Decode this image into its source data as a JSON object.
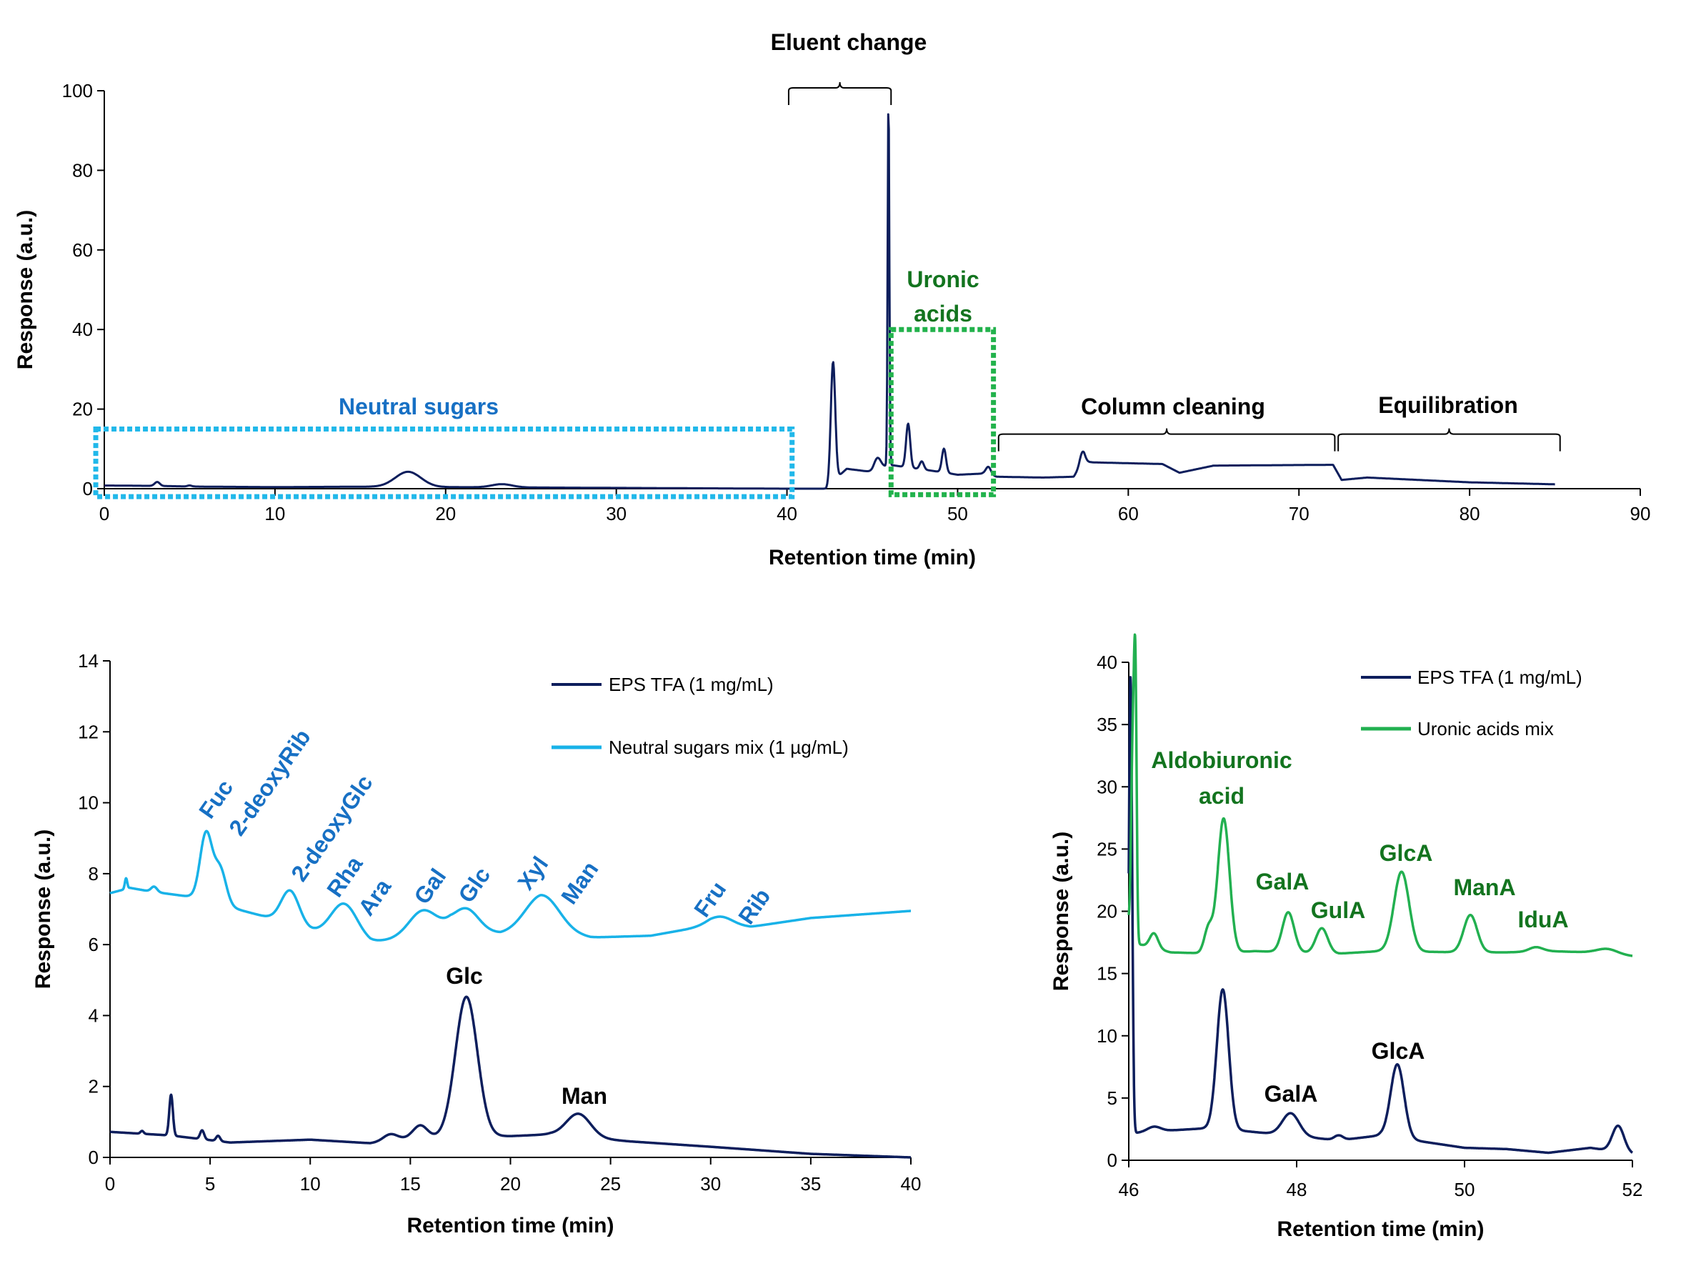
{
  "colors": {
    "eps": "#0d1e5c",
    "neutral": "#18b2e8",
    "uronic": "#22b050",
    "neutral_text": "#1770c4",
    "uronic_text": "#13741f",
    "neutral_box": "#21b8ea",
    "uronic_box": "#22b24c"
  },
  "chart_data": [
    {
      "id": "top",
      "type": "line",
      "xlabel": "Retention time (min)",
      "ylabel": "Response (a.u.)",
      "xlim": [
        0,
        90
      ],
      "ylim": [
        0,
        100
      ],
      "xticks": [
        0,
        10,
        20,
        30,
        40,
        50,
        60,
        70,
        80,
        90
      ],
      "yticks": [
        0,
        20,
        40,
        60,
        80,
        100
      ],
      "series": [
        {
          "name": "EPS TFA",
          "color": "#0d1e5c",
          "base": [
            [
              0,
              0.8
            ],
            [
              3,
              0.7
            ],
            [
              6,
              0.5
            ],
            [
              10,
              0.4
            ],
            [
              15,
              0.5
            ],
            [
              20,
              0.4
            ],
            [
              30,
              0.2
            ],
            [
              40,
              0
            ],
            [
              42.3,
              0
            ],
            [
              42.6,
              1.5
            ],
            [
              43.5,
              5
            ],
            [
              45,
              4.2
            ],
            [
              46,
              6
            ],
            [
              47,
              5.4
            ],
            [
              49,
              4.2
            ],
            [
              50,
              3.5
            ],
            [
              51.5,
              3.8
            ],
            [
              52.3,
              3
            ],
            [
              55,
              2.8
            ],
            [
              56.8,
              3
            ],
            [
              57.4,
              6.8
            ],
            [
              58,
              6.6
            ],
            [
              62,
              6.2
            ],
            [
              63,
              4
            ],
            [
              65,
              5.8
            ],
            [
              72,
              6
            ],
            [
              72.5,
              2.2
            ],
            [
              74,
              2.8
            ],
            [
              80,
              1.6
            ],
            [
              85,
              1.1
            ]
          ],
          "peaks": [
            [
              3.1,
              0.15,
              1.0
            ],
            [
              5,
              0.12,
              0.25
            ],
            [
              17.8,
              0.75,
              3.8
            ],
            [
              23.3,
              0.6,
              0.8
            ],
            [
              42.7,
              0.13,
              30
            ],
            [
              45.3,
              0.2,
              3
            ],
            [
              45.95,
              0.05,
              92
            ],
            [
              47.1,
              0.12,
              11
            ],
            [
              47.9,
              0.12,
              2
            ],
            [
              49.2,
              0.12,
              6
            ],
            [
              51.8,
              0.15,
              2
            ],
            [
              57.3,
              0.15,
              3
            ]
          ]
        }
      ],
      "annotations": [
        {
          "text": "Eluent change",
          "color": "#000000"
        },
        {
          "text": "Uronic",
          "color": "#13741f"
        },
        {
          "text": "acids",
          "color": "#13741f"
        },
        {
          "text": "Neutral sugars",
          "color": "#1770c4"
        },
        {
          "text": "Column cleaning",
          "color": "#000000"
        },
        {
          "text": "Equilibration",
          "color": "#000000"
        }
      ],
      "brackets": [
        {
          "x0": 40.1,
          "x1": 46.1,
          "y": 100
        },
        {
          "x0": 52.4,
          "x1": 72.1,
          "y": 13
        },
        {
          "x0": 72.3,
          "x1": 85.3,
          "y": 13
        }
      ],
      "boxes": [
        {
          "x0": -0.5,
          "x1": 40.3,
          "y0": -2,
          "y1": 15,
          "color": "#21b8ea"
        },
        {
          "x0": 46.1,
          "x1": 52.1,
          "y0": -1.5,
          "y1": 40,
          "color": "#22b24c"
        }
      ]
    },
    {
      "id": "bl",
      "type": "line",
      "xlabel": "Retention time (min)",
      "ylabel": "Response (a.u.)",
      "xlim": [
        0,
        40
      ],
      "ylim": [
        0,
        14
      ],
      "xticks": [
        0,
        5,
        10,
        15,
        20,
        25,
        30,
        35,
        40
      ],
      "yticks": [
        0,
        2,
        4,
        6,
        8,
        10,
        12,
        14
      ],
      "legend": [
        {
          "label": "EPS TFA (1 mg/mL)",
          "color": "#0d1e5c"
        },
        {
          "label": "Neutral sugars mix (1 µg/mL)",
          "color": "#18b2e8"
        }
      ],
      "series": [
        {
          "name": "EPS TFA (1 mg/mL)",
          "color": "#0d1e5c",
          "base": [
            [
              0,
              0.72
            ],
            [
              3,
              0.62
            ],
            [
              6,
              0.42
            ],
            [
              10,
              0.5
            ],
            [
              13,
              0.4
            ],
            [
              15,
              0.55
            ],
            [
              20,
              0.6
            ],
            [
              22,
              0.65
            ],
            [
              26,
              0.45
            ],
            [
              30,
              0.3
            ],
            [
              35,
              0.1
            ],
            [
              40,
              0
            ]
          ],
          "peaks": [
            [
              1.6,
              0.08,
              0.08
            ],
            [
              3.05,
              0.09,
              1.15
            ],
            [
              4.6,
              0.1,
              0.25
            ],
            [
              5.4,
              0.1,
              0.15
            ],
            [
              14,
              0.35,
              0.18
            ],
            [
              15.5,
              0.35,
              0.35
            ],
            [
              17.8,
              0.55,
              3.95
            ],
            [
              23.4,
              0.6,
              0.65
            ]
          ]
        },
        {
          "name": "Neutral sugars mix (1 µg/mL)",
          "color": "#18b2e8",
          "base": [
            [
              0,
              7.45
            ],
            [
              1,
              7.6
            ],
            [
              2,
              7.5
            ],
            [
              4,
              7.35
            ],
            [
              7,
              6.9
            ],
            [
              8,
              6.75
            ],
            [
              10,
              6.4
            ],
            [
              13,
              6.05
            ],
            [
              14,
              6.15
            ],
            [
              17,
              6.55
            ],
            [
              19.5,
              6.3
            ],
            [
              21.5,
              6.4
            ],
            [
              24,
              6.2
            ],
            [
              27,
              6.25
            ],
            [
              30,
              6.55
            ],
            [
              32,
              6.5
            ],
            [
              35,
              6.75
            ],
            [
              40,
              6.95
            ]
          ],
          "peaks": [
            [
              0.8,
              0.06,
              0.3
            ],
            [
              2.2,
              0.15,
              0.15
            ],
            [
              4.8,
              0.3,
              1.9
            ],
            [
              5.5,
              0.3,
              1.0
            ],
            [
              9.0,
              0.45,
              0.95
            ],
            [
              11.7,
              0.65,
              0.95
            ],
            [
              15.6,
              0.65,
              0.6
            ],
            [
              17.8,
              0.6,
              0.55
            ],
            [
              21.6,
              0.85,
              1.0
            ],
            [
              30.5,
              0.6,
              0.25
            ]
          ]
        }
      ],
      "annotations": [
        {
          "text": "Fuc",
          "color": "#1770c4"
        },
        {
          "text": "2-deoxyRib",
          "color": "#1770c4"
        },
        {
          "text": "2-deoxyGlc",
          "color": "#1770c4"
        },
        {
          "text": "Rha",
          "color": "#1770c4"
        },
        {
          "text": "Ara",
          "color": "#1770c4"
        },
        {
          "text": "Gal",
          "color": "#1770c4"
        },
        {
          "text": "Glc",
          "color": "#1770c4"
        },
        {
          "text": "Xyl",
          "color": "#1770c4"
        },
        {
          "text": "Man",
          "color": "#1770c4"
        },
        {
          "text": "Fru",
          "color": "#1770c4"
        },
        {
          "text": "Rib",
          "color": "#1770c4"
        },
        {
          "text": "Glc",
          "color": "#000000"
        },
        {
          "text": "Man",
          "color": "#000000"
        }
      ]
    },
    {
      "id": "br",
      "type": "line",
      "xlabel": "Retention time (min)",
      "ylabel": "Response (a.u.)",
      "xlim": [
        46,
        52
      ],
      "ylim": [
        0,
        40
      ],
      "xticks": [
        46,
        48,
        50,
        52
      ],
      "yticks": [
        0,
        5,
        10,
        15,
        20,
        25,
        30,
        35,
        40
      ],
      "legend": [
        {
          "label": "EPS TFA (1 mg/mL)",
          "color": "#0d1e5c"
        },
        {
          "label": "Uronic acids mix",
          "color": "#22b050"
        }
      ],
      "series": [
        {
          "name": "EPS TFA (1 mg/mL)",
          "color": "#0d1e5c",
          "base": [
            [
              46,
              0
            ],
            [
              46.05,
              2
            ],
            [
              46.1,
              2.2
            ],
            [
              46.5,
              2.4
            ],
            [
              47,
              2.6
            ],
            [
              48.5,
              1.6
            ],
            [
              49,
              2
            ],
            [
              49.6,
              1.4
            ],
            [
              50,
              1
            ],
            [
              50.5,
              0.9
            ],
            [
              51,
              0.6
            ],
            [
              51.5,
              1
            ],
            [
              52,
              0.5
            ]
          ],
          "peaks": [
            [
              46.02,
              0.02,
              38
            ],
            [
              46.3,
              0.08,
              0.4
            ],
            [
              47.12,
              0.07,
              11.2
            ],
            [
              47.93,
              0.1,
              1.8
            ],
            [
              48.5,
              0.05,
              0.4
            ],
            [
              49.2,
              0.08,
              5.9
            ],
            [
              51.83,
              0.07,
              2.1
            ]
          ]
        },
        {
          "name": "Uronic acids mix",
          "color": "#22b050",
          "base": [
            [
              46,
              19
            ],
            [
              46.1,
              17.4
            ],
            [
              46.2,
              17.2
            ],
            [
              46.5,
              16.7
            ],
            [
              47,
              16.6
            ],
            [
              47.5,
              16.8
            ],
            [
              48.5,
              16.6
            ],
            [
              49,
              16.8
            ],
            [
              50,
              16.7
            ],
            [
              50.5,
              16.7
            ],
            [
              51,
              16.8
            ],
            [
              51.5,
              16.7
            ],
            [
              52,
              16.4
            ]
          ],
          "peaks": [
            [
              46.05,
              0.02,
              16
            ],
            [
              46.08,
              0.015,
              18
            ],
            [
              46.3,
              0.05,
              1.2
            ],
            [
              46.95,
              0.05,
              2
            ],
            [
              47.13,
              0.07,
              10.8
            ],
            [
              47.9,
              0.07,
              3.2
            ],
            [
              48.3,
              0.07,
              2.0
            ],
            [
              49.25,
              0.09,
              6.4
            ],
            [
              50.07,
              0.08,
              3.0
            ],
            [
              50.85,
              0.08,
              0.35
            ],
            [
              51.7,
              0.12,
              0.4
            ]
          ]
        }
      ],
      "annotations": [
        {
          "text": "Aldobiuronic",
          "color": "#13741f"
        },
        {
          "text": "acid",
          "color": "#13741f"
        },
        {
          "text": "GalA",
          "color": "#13741f"
        },
        {
          "text": "GulA",
          "color": "#13741f"
        },
        {
          "text": "GlcA",
          "color": "#13741f"
        },
        {
          "text": "ManA",
          "color": "#13741f"
        },
        {
          "text": "IduA",
          "color": "#13741f"
        },
        {
          "text": "GalA",
          "color": "#000000"
        },
        {
          "text": "GlcA",
          "color": "#000000"
        }
      ]
    }
  ]
}
